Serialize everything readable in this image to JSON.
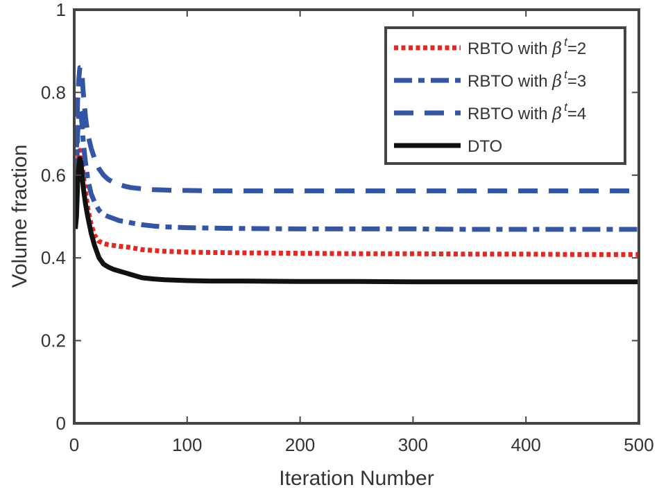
{
  "chart_data": {
    "type": "line",
    "title": "",
    "xlabel": "Iteration Number",
    "ylabel": "Volume fraction",
    "xlim": [
      0,
      500
    ],
    "ylim": [
      0,
      1
    ],
    "xticks": [
      0,
      100,
      200,
      300,
      400,
      500
    ],
    "yticks": [
      0,
      0.2,
      0.4,
      0.6,
      0.8,
      1
    ],
    "xtick_labels": [
      "0",
      "100",
      "200",
      "300",
      "400",
      "500"
    ],
    "ytick_labels": [
      "0",
      "0.2",
      "0.4",
      "0.6",
      "0.8",
      "1"
    ],
    "grid": false,
    "legend_position": "top-right",
    "series": [
      {
        "name": "RBTO with β^t=2",
        "legend_prefix": "RBTO with ",
        "legend_beta": "β",
        "legend_sup": "t",
        "legend_suffix": "=2",
        "color": "#e8251f",
        "style": "dotted",
        "x": [
          1,
          2,
          3,
          4,
          5,
          6,
          7,
          8,
          10,
          12,
          15,
          18,
          22,
          26,
          30,
          35,
          40,
          45,
          50,
          60,
          70,
          80,
          90,
          100,
          120,
          150,
          200,
          250,
          300,
          350,
          400,
          450,
          500
        ],
        "y": [
          0.48,
          0.55,
          0.62,
          0.65,
          0.66,
          0.65,
          0.63,
          0.6,
          0.56,
          0.52,
          0.48,
          0.455,
          0.44,
          0.435,
          0.432,
          0.43,
          0.428,
          0.427,
          0.425,
          0.42,
          0.418,
          0.416,
          0.415,
          0.414,
          0.413,
          0.412,
          0.411,
          0.41,
          0.41,
          0.409,
          0.409,
          0.408,
          0.408
        ]
      },
      {
        "name": "RBTO with β^t=3",
        "legend_prefix": "RBTO with ",
        "legend_beta": "β",
        "legend_sup": "t",
        "legend_suffix": "=3",
        "color": "#3355a6",
        "style": "dashdot",
        "x": [
          1,
          2,
          3,
          4,
          5,
          6,
          7,
          8,
          10,
          12,
          15,
          18,
          22,
          26,
          30,
          35,
          40,
          45,
          50,
          60,
          70,
          80,
          90,
          100,
          120,
          150,
          200,
          250,
          300,
          350,
          400,
          450,
          500
        ],
        "y": [
          0.5,
          0.6,
          0.7,
          0.74,
          0.76,
          0.75,
          0.72,
          0.68,
          0.63,
          0.59,
          0.555,
          0.535,
          0.515,
          0.505,
          0.5,
          0.495,
          0.49,
          0.488,
          0.485,
          0.48,
          0.477,
          0.475,
          0.474,
          0.473,
          0.472,
          0.471,
          0.47,
          0.47,
          0.47,
          0.469,
          0.469,
          0.469,
          0.469
        ]
      },
      {
        "name": "RBTO with β^t=4",
        "legend_prefix": "RBTO with ",
        "legend_beta": "β",
        "legend_sup": "t",
        "legend_suffix": "=4",
        "color": "#3355a6",
        "style": "dashed",
        "x": [
          1,
          2,
          3,
          4,
          5,
          6,
          7,
          8,
          10,
          12,
          15,
          18,
          22,
          26,
          30,
          35,
          40,
          45,
          50,
          60,
          70,
          80,
          90,
          100,
          120,
          150,
          200,
          250,
          300,
          350,
          400,
          450,
          500
        ],
        "y": [
          0.52,
          0.66,
          0.78,
          0.83,
          0.86,
          0.86,
          0.84,
          0.8,
          0.74,
          0.7,
          0.665,
          0.64,
          0.615,
          0.6,
          0.59,
          0.582,
          0.577,
          0.573,
          0.57,
          0.567,
          0.565,
          0.564,
          0.563,
          0.563,
          0.562,
          0.562,
          0.562,
          0.562,
          0.562,
          0.562,
          0.562,
          0.562,
          0.562
        ]
      },
      {
        "name": "DTO",
        "legend_prefix": "DTO",
        "legend_beta": "",
        "legend_sup": "",
        "legend_suffix": "",
        "color": "#111111",
        "style": "solid",
        "x": [
          1,
          2,
          3,
          4,
          5,
          6,
          7,
          8,
          10,
          12,
          15,
          18,
          22,
          26,
          30,
          35,
          40,
          45,
          50,
          60,
          70,
          80,
          90,
          100,
          120,
          150,
          200,
          250,
          300,
          350,
          400,
          450,
          500
        ],
        "y": [
          0.47,
          0.5,
          0.58,
          0.62,
          0.64,
          0.63,
          0.6,
          0.57,
          0.53,
          0.5,
          0.46,
          0.43,
          0.4,
          0.385,
          0.378,
          0.372,
          0.368,
          0.364,
          0.36,
          0.352,
          0.349,
          0.347,
          0.346,
          0.345,
          0.344,
          0.344,
          0.343,
          0.343,
          0.342,
          0.342,
          0.342,
          0.342,
          0.342
        ]
      }
    ]
  }
}
